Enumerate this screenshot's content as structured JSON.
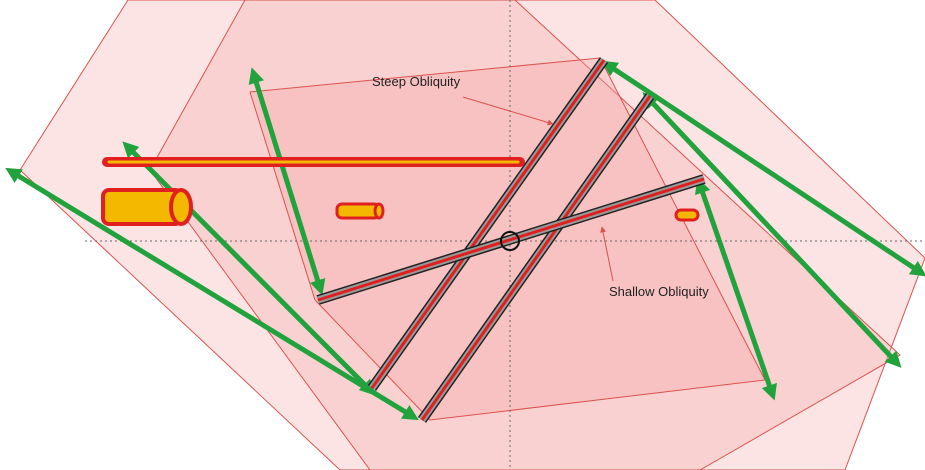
{
  "annotations": {
    "steep": "Steep Obliquity",
    "shallow": "Shallow Obliquity"
  },
  "colors": {
    "plane_fill": "#f4a6a6",
    "plane_stroke": "#d9534f",
    "rod_red": "#e02020",
    "rod_yellow": "#f5b800",
    "arrow_green": "#22a23c",
    "slab_gray": "#8a8a8a",
    "guide_line": "#666666"
  }
}
